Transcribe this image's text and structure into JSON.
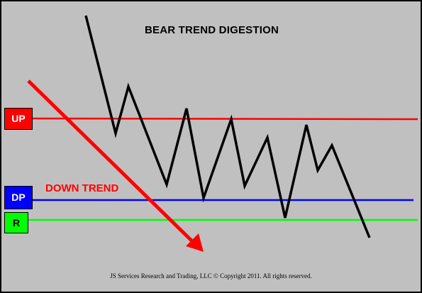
{
  "diagram": {
    "title": "BEAR TREND DIGESTION",
    "levels": {
      "up_label": "UP",
      "dp_label": "DP",
      "r_label": "R"
    },
    "arrow_label": "DOWN TREND",
    "footer": "JS Services Research  and Trading, LLC © Copyright 2011. All rights reserved.",
    "colors": {
      "background": "#c0c0c0",
      "up_line": "#ff0000",
      "dp_line": "#0000ff",
      "r_line": "#00ff00",
      "price_line": "#000000",
      "arrow": "#ff0000"
    }
  }
}
